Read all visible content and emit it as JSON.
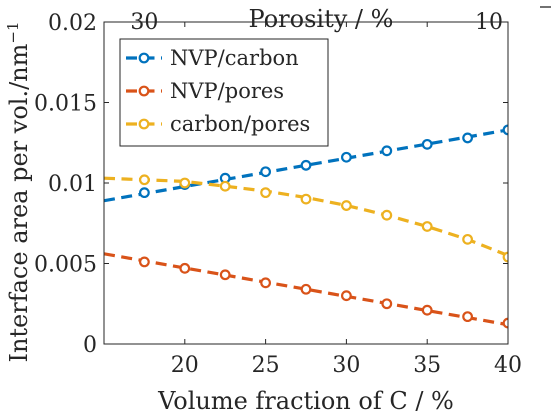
{
  "chart_data": {
    "type": "line",
    "xlabel": "Volume fraction of C / %",
    "ylabel": "Interface area per vol./nm",
    "ylabel_superscript": "−1",
    "top_axis": {
      "label": "Porosity / %",
      "tick_labels": [
        "30",
        "10"
      ]
    },
    "xlim": [
      15,
      40
    ],
    "ylim": [
      0,
      0.02
    ],
    "x_ticks": [
      "20",
      "25",
      "30",
      "35",
      "40"
    ],
    "y_ticks": [
      "0",
      "0.005",
      "0.01",
      "0.015",
      "0.02"
    ],
    "grid": false,
    "legend_position": "top-left",
    "x": [
      17.5,
      20,
      22.5,
      25,
      27.5,
      30,
      32.5,
      35,
      37.5,
      40
    ],
    "series": [
      {
        "name": "NVP/carbon",
        "color": "#0072BD",
        "values": [
          0.0094,
          0.0099,
          0.0103,
          0.0107,
          0.0111,
          0.0116,
          0.012,
          0.0124,
          0.0128,
          0.0133
        ],
        "fit": [
          [
            15,
            0.0089
          ],
          [
            40,
            0.0133
          ]
        ]
      },
      {
        "name": "NVP/pores",
        "color": "#D95319",
        "values": [
          0.0051,
          0.0047,
          0.0043,
          0.0038,
          0.0034,
          0.003,
          0.0025,
          0.0021,
          0.0017,
          0.0013
        ],
        "fit": [
          [
            15,
            0.0056
          ],
          [
            40,
            0.0012
          ]
        ]
      },
      {
        "name": "carbon/pores",
        "color": "#EDB120",
        "values": [
          0.0102,
          0.01,
          0.0098,
          0.0094,
          0.009,
          0.0086,
          0.008,
          0.0073,
          0.0065,
          0.0054
        ],
        "fit": [
          [
            15,
            0.0103
          ],
          [
            17.5,
            0.0102
          ],
          [
            20,
            0.0101
          ],
          [
            22.5,
            0.0098
          ],
          [
            25,
            0.0095
          ],
          [
            27.5,
            0.0091
          ],
          [
            30,
            0.0086
          ],
          [
            32.5,
            0.008
          ],
          [
            35,
            0.0073
          ],
          [
            37.5,
            0.0065
          ],
          [
            40,
            0.0055
          ]
        ]
      }
    ]
  }
}
